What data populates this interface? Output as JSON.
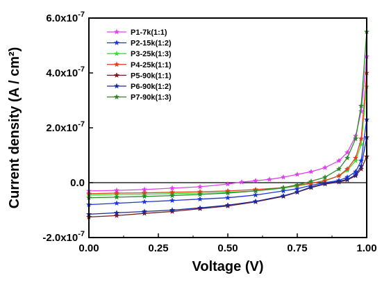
{
  "chart_data": {
    "type": "line",
    "xlabel": "Voltage  (V)",
    "ylabel": "Current  density  (A / cm²)",
    "xlim": [
      0,
      1.0
    ],
    "ylim": [
      -2e-07,
      6e-07
    ],
    "x_ticks": [
      "0.00",
      "0.25",
      "0.50",
      "0.75",
      "1.00"
    ],
    "y_ticks": [
      {
        "mantissa": "-2.0x10",
        "exp": "-7"
      },
      {
        "mantissa": "0.0",
        "exp": ""
      },
      {
        "mantissa": "2.0x10",
        "exp": "-7"
      },
      {
        "mantissa": "4.0x10",
        "exp": "-7"
      },
      {
        "mantissa": "6.0x10",
        "exp": "-7"
      }
    ],
    "legend_position": "top-left",
    "marker": "star",
    "series": [
      {
        "name": "P1-7k(1:1)",
        "color": "#e040f0",
        "x": [
          0.0,
          0.1,
          0.2,
          0.3,
          0.4,
          0.5,
          0.55,
          0.6,
          0.65,
          0.7,
          0.75,
          0.8,
          0.85,
          0.9,
          0.93,
          0.96,
          0.98,
          1.0
        ],
        "y": [
          -3e-08,
          -2.8e-08,
          -2.5e-08,
          -2e-08,
          -1.5e-08,
          -5e-09,
          2e-09,
          7e-09,
          1.2e-08,
          2e-08,
          3e-08,
          4e-08,
          5.5e-08,
          8e-08,
          1.1e-07,
          1.7e-07,
          2.6e-07,
          4.6e-07
        ]
      },
      {
        "name": "P2-15k(1:2)",
        "color": "#1a35e0",
        "x": [
          0.0,
          0.1,
          0.2,
          0.3,
          0.4,
          0.5,
          0.6,
          0.7,
          0.75,
          0.8,
          0.85,
          0.9,
          0.93,
          0.96,
          0.98,
          1.0
        ],
        "y": [
          -8e-08,
          -7.5e-08,
          -7e-08,
          -6.5e-08,
          -6e-08,
          -5.5e-08,
          -4.5e-08,
          -3e-08,
          -2.2e-08,
          -1e-08,
          0.0,
          8e-09,
          2e-08,
          4e-08,
          8e-08,
          2.3e-07
        ]
      },
      {
        "name": "P3-25k(1:3)",
        "color": "#38e038",
        "x": [
          0.0,
          0.1,
          0.2,
          0.3,
          0.4,
          0.5,
          0.6,
          0.7,
          0.75,
          0.8,
          0.85,
          0.9,
          0.93,
          0.96,
          0.98,
          1.0
        ],
        "y": [
          -4.5e-08,
          -4.3e-08,
          -4.2e-08,
          -4e-08,
          -3.8e-08,
          -3.5e-08,
          -3e-08,
          -2e-08,
          -1.2e-08,
          -3e-09,
          8e-09,
          2.5e-08,
          4.5e-08,
          8e-08,
          1.4e-07,
          3.5e-07
        ]
      },
      {
        "name": "P4-25k(1:1)",
        "color": "#e04020",
        "x": [
          0.0,
          0.1,
          0.2,
          0.3,
          0.4,
          0.5,
          0.6,
          0.7,
          0.75,
          0.8,
          0.85,
          0.9,
          0.93,
          0.96,
          0.98,
          1.0
        ],
        "y": [
          -4e-08,
          -3.8e-08,
          -3.7e-08,
          -3.5e-08,
          -3.3e-08,
          -3e-08,
          -2.5e-08,
          -1.8e-08,
          -1e-08,
          -2e-09,
          7e-09,
          2.5e-08,
          5e-08,
          9e-08,
          1.6e-07,
          4e-07
        ]
      },
      {
        "name": "P5-90k(1:1)",
        "color": "#7a1a1a",
        "x": [
          0.0,
          0.1,
          0.2,
          0.3,
          0.4,
          0.5,
          0.6,
          0.7,
          0.75,
          0.8,
          0.85,
          0.9,
          0.93,
          0.96,
          0.98,
          1.0
        ],
        "y": [
          -1.25e-07,
          -1.2e-07,
          -1.12e-07,
          -1.05e-07,
          -9.5e-08,
          -8.5e-08,
          -7e-08,
          -5e-08,
          -3.5e-08,
          -1.8e-08,
          -5e-09,
          2e-09,
          1e-08,
          2.5e-08,
          5e-08,
          9.5e-08
        ]
      },
      {
        "name": "P6-90k(1:2)",
        "color": "#1a2a9a",
        "x": [
          0.0,
          0.1,
          0.2,
          0.3,
          0.4,
          0.5,
          0.6,
          0.7,
          0.75,
          0.8,
          0.85,
          0.9,
          0.93,
          0.96,
          0.98,
          1.0
        ],
        "y": [
          -1.15e-07,
          -1.1e-07,
          -1.05e-07,
          -1e-07,
          -9.2e-08,
          -8.2e-08,
          -6.8e-08,
          -4.8e-08,
          -3.4e-08,
          -1.6e-08,
          -3e-09,
          5e-09,
          1.2e-08,
          2.8e-08,
          6e-08,
          1.65e-07
        ]
      },
      {
        "name": "P7-90k(1:3)",
        "color": "#2a8a2a",
        "x": [
          0.0,
          0.1,
          0.2,
          0.3,
          0.4,
          0.5,
          0.6,
          0.7,
          0.75,
          0.8,
          0.85,
          0.9,
          0.93,
          0.96,
          0.98,
          1.0
        ],
        "y": [
          -5.5e-08,
          -5.3e-08,
          -5e-08,
          -4.7e-08,
          -4.3e-08,
          -3.8e-08,
          -3e-08,
          -1.8e-08,
          -8e-09,
          5e-09,
          2e-08,
          5e-08,
          9e-08,
          1.6e-07,
          2.8e-07,
          5.5e-07
        ]
      }
    ]
  }
}
